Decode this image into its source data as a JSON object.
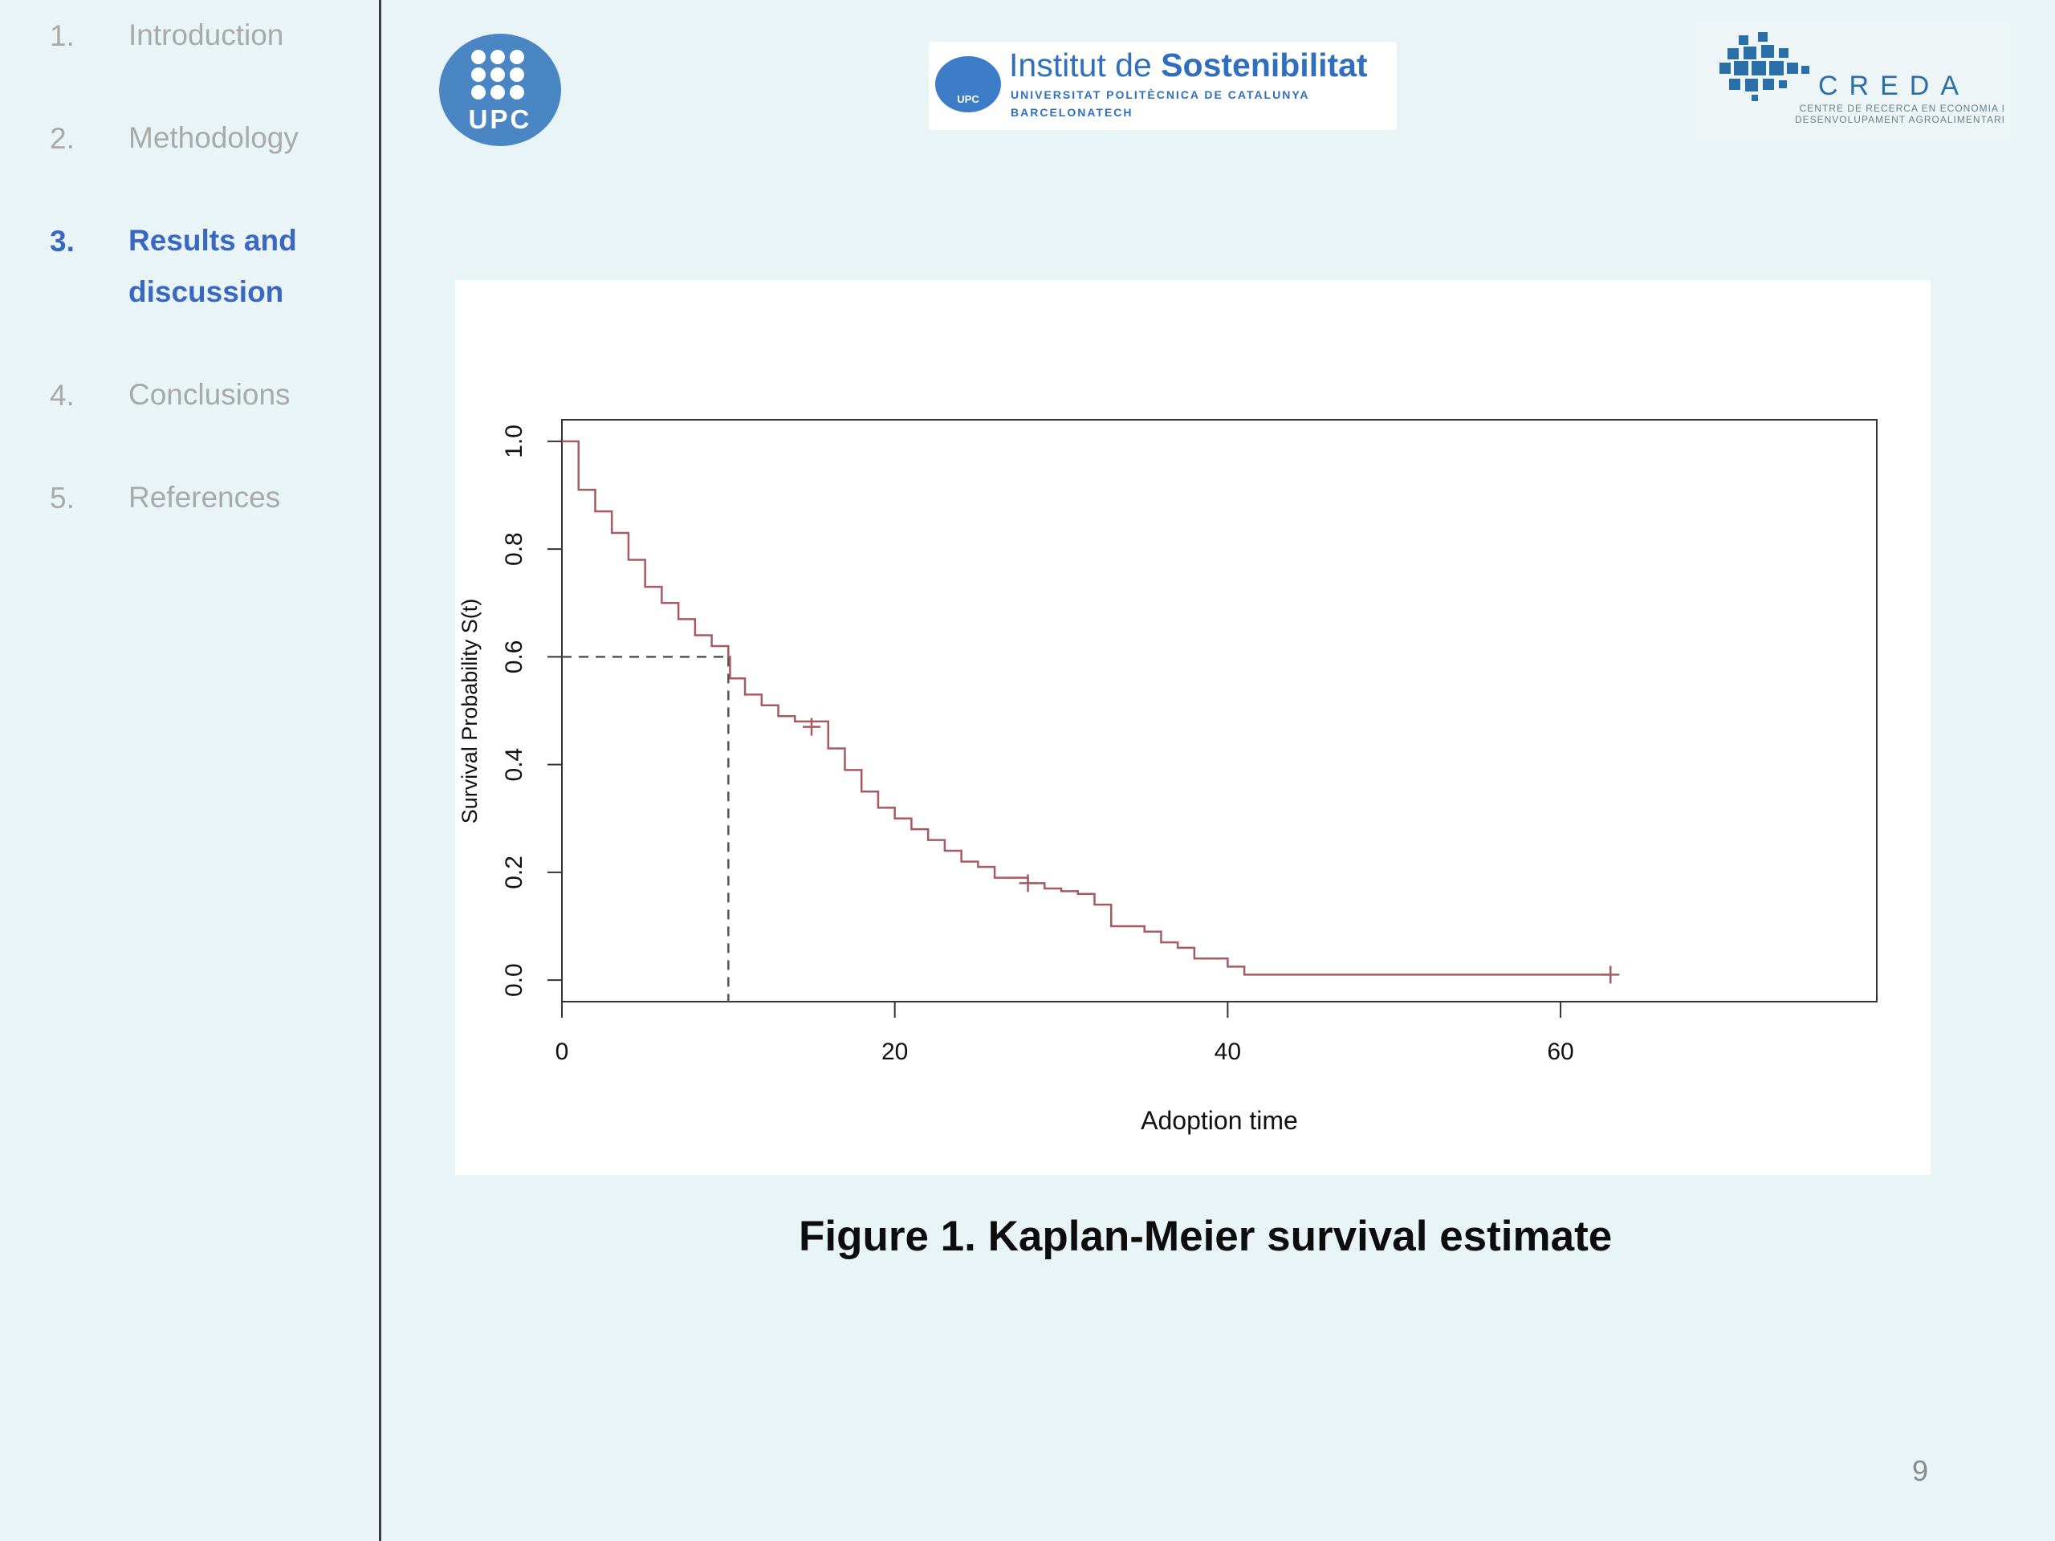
{
  "sidebar": {
    "items": [
      {
        "num": "1.",
        "label": "Introduction"
      },
      {
        "num": "2.",
        "label": "Methodology"
      },
      {
        "num": "3.",
        "label": "Results and discussion"
      },
      {
        "num": "4.",
        "label": "Conclusions"
      },
      {
        "num": "5.",
        "label": "References"
      }
    ]
  },
  "logos": {
    "upc": "UPC",
    "institut": {
      "line1_a": "Institut de ",
      "line1_b": "Sostenibilitat",
      "line2": "UNIVERSITAT POLITÈCNICA DE CATALUNYA",
      "line3": "BARCELONATECH",
      "badge": "UPC"
    },
    "creda": {
      "name": "CREDA",
      "subtitle": "CENTRE DE RECERCA EN ECONOMIA I DESENVOLUPAMENT AGROALIMENTARI"
    }
  },
  "chart_data": {
    "type": "line",
    "title": "",
    "xlabel": "Adoption time",
    "ylabel": "Survival Probability S(t)",
    "xlim": [
      0,
      79
    ],
    "ylim": [
      -0.04,
      1.04
    ],
    "x_ticks": [
      0,
      20,
      40,
      60
    ],
    "x_tick_labels": [
      "0",
      "20",
      "40",
      "60"
    ],
    "y_ticks": [
      0.0,
      0.2,
      0.4,
      0.6,
      0.8,
      1.0
    ],
    "y_tick_labels": [
      "0.0",
      "0.2",
      "0.4",
      "0.6",
      "0.8",
      "1.0"
    ],
    "series": [
      {
        "style": "step",
        "color": "#a85a60",
        "points": [
          [
            0,
            1.0
          ],
          [
            1,
            0.91
          ],
          [
            2,
            0.87
          ],
          [
            3,
            0.83
          ],
          [
            4,
            0.78
          ],
          [
            5,
            0.73
          ],
          [
            6,
            0.7
          ],
          [
            7,
            0.67
          ],
          [
            8,
            0.64
          ],
          [
            9,
            0.62
          ],
          [
            10,
            0.6
          ],
          [
            10.1,
            0.56
          ],
          [
            11,
            0.53
          ],
          [
            12,
            0.51
          ],
          [
            13,
            0.49
          ],
          [
            14,
            0.48
          ],
          [
            16,
            0.43
          ],
          [
            17,
            0.39
          ],
          [
            18,
            0.35
          ],
          [
            19,
            0.32
          ],
          [
            20,
            0.3
          ],
          [
            21,
            0.28
          ],
          [
            22,
            0.26
          ],
          [
            23,
            0.24
          ],
          [
            24,
            0.22
          ],
          [
            25,
            0.21
          ],
          [
            26,
            0.19
          ],
          [
            28,
            0.18
          ],
          [
            29,
            0.17
          ],
          [
            30,
            0.165
          ],
          [
            31,
            0.16
          ],
          [
            32,
            0.14
          ],
          [
            33,
            0.1
          ],
          [
            35,
            0.09
          ],
          [
            36,
            0.07
          ],
          [
            37,
            0.06
          ],
          [
            38,
            0.04
          ],
          [
            40,
            0.025
          ],
          [
            41,
            0.01
          ],
          [
            63,
            0.01
          ]
        ],
        "censored": [
          [
            15,
            0.47
          ],
          [
            28,
            0.18
          ],
          [
            63,
            0.01
          ]
        ]
      }
    ],
    "reference_lines": [
      {
        "y": 0.6,
        "x_to": 10,
        "style": "dashed"
      },
      {
        "x": 10,
        "y_to": 0.6,
        "style": "dashed"
      }
    ],
    "grid": false,
    "legend": "none"
  },
  "caption": "Figure 1. Kaplan-Meier survival estimate",
  "page_number": "9"
}
